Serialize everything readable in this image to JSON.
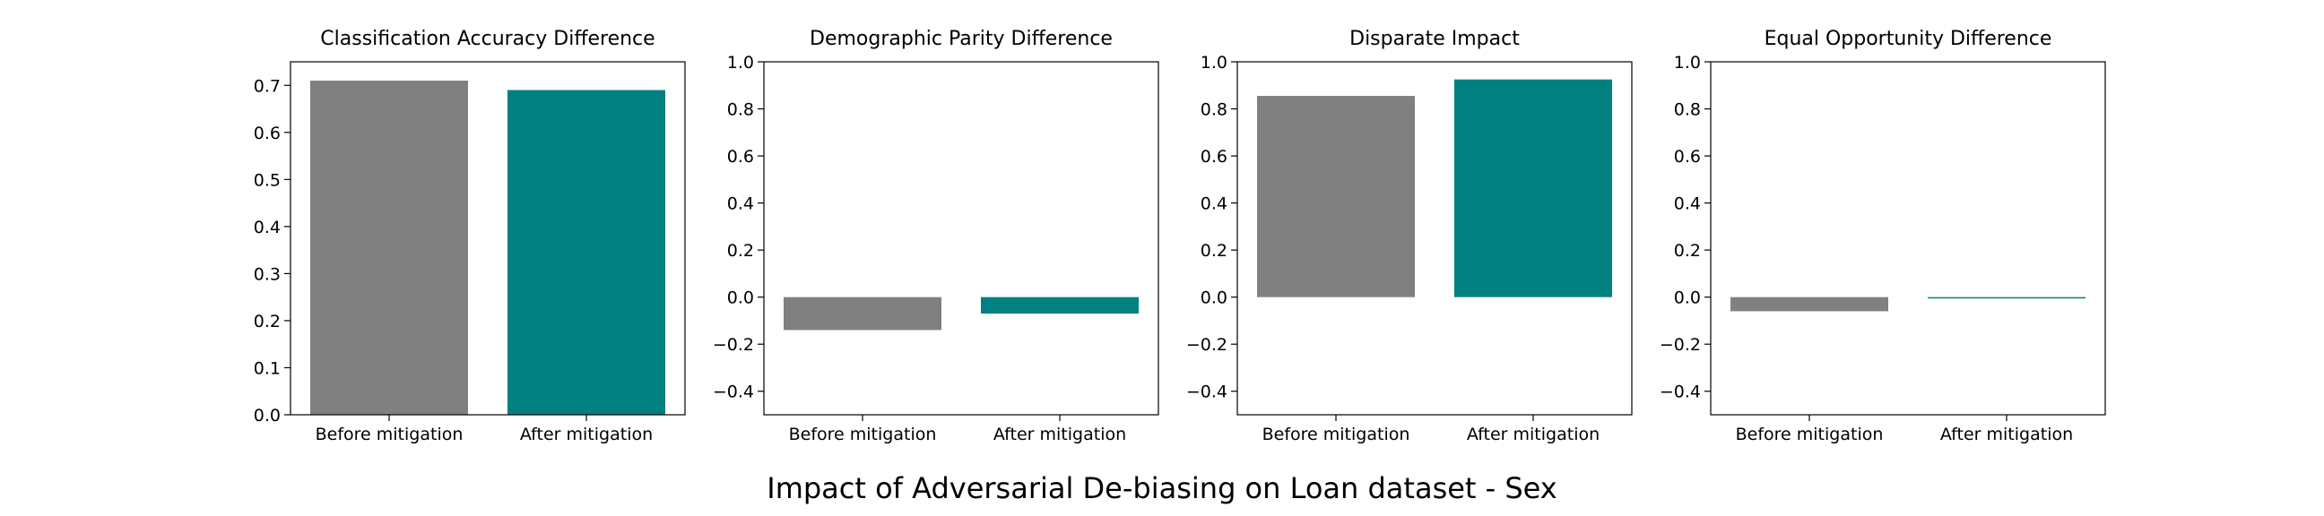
{
  "figure": {
    "suptitle": "Impact of Adversarial De-biasing on Loan dataset - Sex"
  },
  "colors": {
    "before": "#808080",
    "after": "#008080",
    "axis": "#000000"
  },
  "chart_data": [
    {
      "type": "bar",
      "title": "Classification Accuracy Difference",
      "categories": [
        "Before mitigation",
        "After mitigation"
      ],
      "values": [
        0.71,
        0.69
      ],
      "ylim": [
        0,
        0.75
      ],
      "yticks": [
        0.0,
        0.1,
        0.2,
        0.3,
        0.4,
        0.5,
        0.6,
        0.7
      ],
      "ytick_labels": [
        "0.0",
        "0.1",
        "0.2",
        "0.3",
        "0.4",
        "0.5",
        "0.6",
        "0.7"
      ],
      "grid": false
    },
    {
      "type": "bar",
      "title": "Demographic Parity Difference",
      "categories": [
        "Before mitigation",
        "After mitigation"
      ],
      "values": [
        -0.14,
        -0.07
      ],
      "ylim": [
        -0.5,
        1.0
      ],
      "yticks": [
        -0.4,
        -0.2,
        0.0,
        0.2,
        0.4,
        0.6,
        0.8,
        1.0
      ],
      "ytick_labels": [
        "−0.4",
        "−0.2",
        "0.0",
        "0.2",
        "0.4",
        "0.6",
        "0.8",
        "1.0"
      ],
      "grid": false
    },
    {
      "type": "bar",
      "title": "Disparate Impact",
      "categories": [
        "Before mitigation",
        "After mitigation"
      ],
      "values": [
        0.855,
        0.925
      ],
      "ylim": [
        -0.5,
        1.0
      ],
      "yticks": [
        -0.4,
        -0.2,
        0.0,
        0.2,
        0.4,
        0.6,
        0.8,
        1.0
      ],
      "ytick_labels": [
        "−0.4",
        "−0.2",
        "0.0",
        "0.2",
        "0.4",
        "0.6",
        "0.8",
        "1.0"
      ],
      "grid": false
    },
    {
      "type": "bar",
      "title": "Equal Opportunity Difference",
      "categories": [
        "Before mitigation",
        "After mitigation"
      ],
      "values": [
        -0.06,
        -0.005
      ],
      "ylim": [
        -0.5,
        1.0
      ],
      "yticks": [
        -0.4,
        -0.2,
        0.0,
        0.2,
        0.4,
        0.6,
        0.8,
        1.0
      ],
      "ytick_labels": [
        "−0.4",
        "−0.2",
        "0.0",
        "0.2",
        "0.4",
        "0.6",
        "0.8",
        "1.0"
      ],
      "grid": false
    }
  ]
}
